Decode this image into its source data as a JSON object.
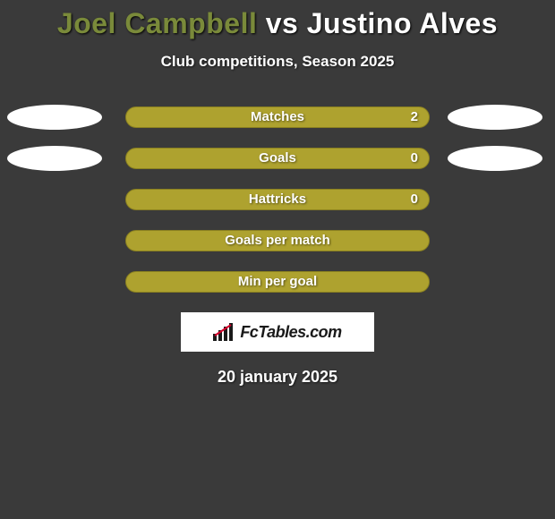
{
  "title": {
    "player1": "Joel Campbell",
    "vs": "vs",
    "player2": "Justino Alves",
    "player1_color": "#7a8a3a",
    "vs_color": "#ffffff",
    "player2_color": "#ffffff"
  },
  "subtitle": "Club competitions, Season 2025",
  "background_color": "#3a3a3a",
  "bar_color": "#aea22f",
  "bar_border_color": "#8a8020",
  "ellipse_color": "#ffffff",
  "stats": [
    {
      "label": "Matches",
      "value": "2",
      "show_value": true,
      "left_ellipse": true,
      "right_ellipse": true
    },
    {
      "label": "Goals",
      "value": "0",
      "show_value": true,
      "left_ellipse": true,
      "right_ellipse": true
    },
    {
      "label": "Hattricks",
      "value": "0",
      "show_value": true,
      "left_ellipse": false,
      "right_ellipse": false
    },
    {
      "label": "Goals per match",
      "value": "",
      "show_value": false,
      "left_ellipse": false,
      "right_ellipse": false
    },
    {
      "label": "Min per goal",
      "value": "",
      "show_value": false,
      "left_ellipse": false,
      "right_ellipse": false
    }
  ],
  "logo_text": "FcTables.com",
  "date": "20 january 2025"
}
